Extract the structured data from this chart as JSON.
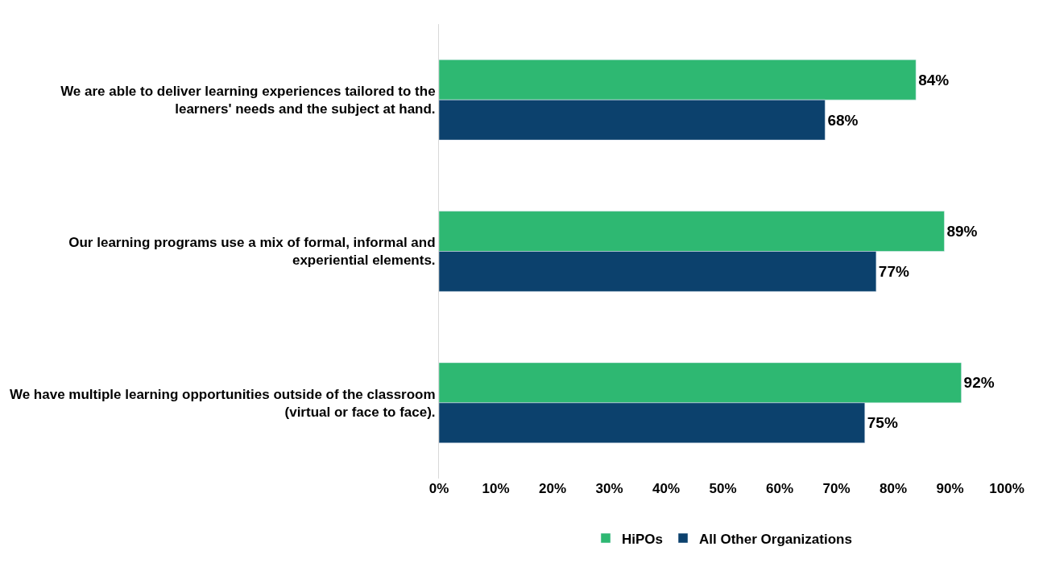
{
  "chart_data": {
    "type": "bar",
    "orientation": "horizontal",
    "categories": [
      "We are able to deliver learning experiences tailored to the learners' needs and the subject at hand.",
      "Our learning programs use a mix of formal, informal and experiential elements.",
      "We have multiple learning opportunities outside of the classroom (virtual or face to face)."
    ],
    "series": [
      {
        "name": "HiPOs",
        "color": "#2eb872",
        "values": [
          84,
          89,
          92
        ],
        "value_labels": [
          "84%",
          "89%",
          "92%"
        ]
      },
      {
        "name": "All Other Organizations",
        "color": "#0c416d",
        "values": [
          68,
          77,
          75
        ],
        "value_labels": [
          "68%",
          "77%",
          "75%"
        ]
      }
    ],
    "xlim": [
      0,
      100
    ],
    "xticks": [
      {
        "value": 0,
        "label": "0%"
      },
      {
        "value": 10,
        "label": "10%"
      },
      {
        "value": 20,
        "label": "20%"
      },
      {
        "value": 30,
        "label": "30%"
      },
      {
        "value": 40,
        "label": "40%"
      },
      {
        "value": 50,
        "label": "50%"
      },
      {
        "value": 60,
        "label": "60%"
      },
      {
        "value": 70,
        "label": "70%"
      },
      {
        "value": 80,
        "label": "80%"
      },
      {
        "value": 90,
        "label": "90%"
      },
      {
        "value": 100,
        "label": "100%"
      }
    ],
    "legend": "bottom"
  }
}
